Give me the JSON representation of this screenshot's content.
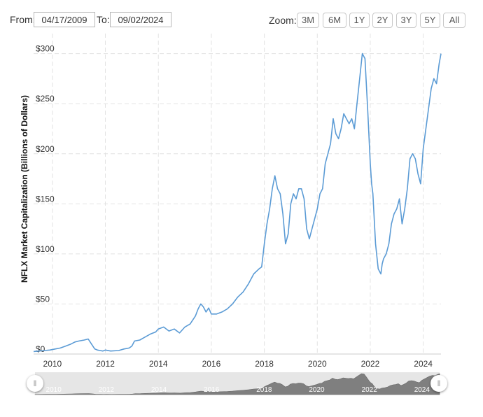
{
  "toolbar": {
    "from_label": "From:",
    "from_value": "04/17/2009",
    "to_label": "To:",
    "to_value": "09/02/2024",
    "zoom_label": "Zoom:",
    "zoom_buttons": [
      "3M",
      "6M",
      "1Y",
      "2Y",
      "3Y",
      "5Y",
      "All"
    ]
  },
  "colors": {
    "line": "#5b9bd5",
    "grid": "#e2e2e2",
    "navigator_area": "#7f7f7f"
  },
  "navigator": {
    "labels": [
      "2010",
      "2012",
      "2014",
      "2016",
      "2018",
      "2020",
      "2022",
      "2024"
    ]
  },
  "chart_data": {
    "type": "line",
    "title": "",
    "xlabel": "",
    "ylabel": "NFLX Market Capitalization (Billions of Dollars)",
    "xlim": [
      2009.29,
      2024.67
    ],
    "ylim": [
      0,
      320
    ],
    "x_ticks": [
      2010,
      2012,
      2014,
      2016,
      2018,
      2020,
      2022,
      2024
    ],
    "x_tick_labels": [
      "2010",
      "2012",
      "2014",
      "2016",
      "2018",
      "2020",
      "2022",
      "2024"
    ],
    "y_ticks": [
      0,
      50,
      100,
      150,
      200,
      250,
      300
    ],
    "y_tick_labels": [
      "$0",
      "$50",
      "$100",
      "$150",
      "$200",
      "$250",
      "$300"
    ],
    "grid": true,
    "legend": "none",
    "series": [
      {
        "x": [
          2009.29,
          2009.5,
          2009.7,
          2009.9,
          2010.1,
          2010.3,
          2010.5,
          2010.7,
          2010.85,
          2011.0,
          2011.2,
          2011.35,
          2011.5,
          2011.6,
          2011.7,
          2011.8,
          2011.9,
          2012.0,
          2012.2,
          2012.5,
          2012.7,
          2012.9,
          2013.0,
          2013.1,
          2013.3,
          2013.5,
          2013.7,
          2013.9,
          2014.0,
          2014.2,
          2014.4,
          2014.6,
          2014.8,
          2015.0,
          2015.2,
          2015.4,
          2015.5,
          2015.6,
          2015.7,
          2015.8,
          2015.9,
          2016.0,
          2016.2,
          2016.4,
          2016.6,
          2016.8,
          2017.0,
          2017.2,
          2017.4,
          2017.6,
          2017.8,
          2017.9,
          2018.0,
          2018.1,
          2018.2,
          2018.3,
          2018.4,
          2018.5,
          2018.6,
          2018.7,
          2018.8,
          2018.9,
          2019.0,
          2019.1,
          2019.2,
          2019.3,
          2019.4,
          2019.5,
          2019.6,
          2019.7,
          2019.8,
          2019.9,
          2020.0,
          2020.1,
          2020.2,
          2020.3,
          2020.4,
          2020.5,
          2020.6,
          2020.7,
          2020.8,
          2020.9,
          2021.0,
          2021.1,
          2021.2,
          2021.3,
          2021.4,
          2021.5,
          2021.6,
          2021.7,
          2021.8,
          2021.85,
          2021.9,
          2022.0,
          2022.05,
          2022.1,
          2022.2,
          2022.3,
          2022.4,
          2022.45,
          2022.5,
          2022.6,
          2022.7,
          2022.8,
          2022.9,
          2023.0,
          2023.1,
          2023.2,
          2023.3,
          2023.4,
          2023.5,
          2023.6,
          2023.7,
          2023.8,
          2023.9,
          2024.0,
          2024.1,
          2024.2,
          2024.3,
          2024.4,
          2024.5,
          2024.6,
          2024.67
        ],
        "y": [
          2.5,
          3,
          3.5,
          4,
          5,
          6,
          8,
          10,
          12,
          13,
          14,
          15,
          9,
          5,
          4,
          3.5,
          3,
          4,
          3,
          3.5,
          5,
          6,
          8,
          13,
          14,
          17,
          20,
          22,
          25,
          27,
          23,
          25,
          21,
          27,
          30,
          38,
          45,
          50,
          47,
          42,
          46,
          40,
          40,
          42,
          45,
          50,
          57,
          62,
          70,
          80,
          85,
          87,
          110,
          130,
          145,
          165,
          178,
          165,
          160,
          140,
          110,
          120,
          150,
          160,
          155,
          165,
          165,
          155,
          125,
          115,
          125,
          135,
          145,
          160,
          165,
          190,
          200,
          210,
          235,
          220,
          215,
          225,
          240,
          235,
          230,
          235,
          225,
          250,
          275,
          300,
          295,
          270,
          245,
          190,
          170,
          160,
          110,
          85,
          80,
          90,
          95,
          100,
          110,
          130,
          140,
          145,
          155,
          130,
          145,
          165,
          195,
          200,
          195,
          180,
          170,
          205,
          225,
          245,
          265,
          275,
          270,
          290,
          300
        ]
      }
    ]
  }
}
